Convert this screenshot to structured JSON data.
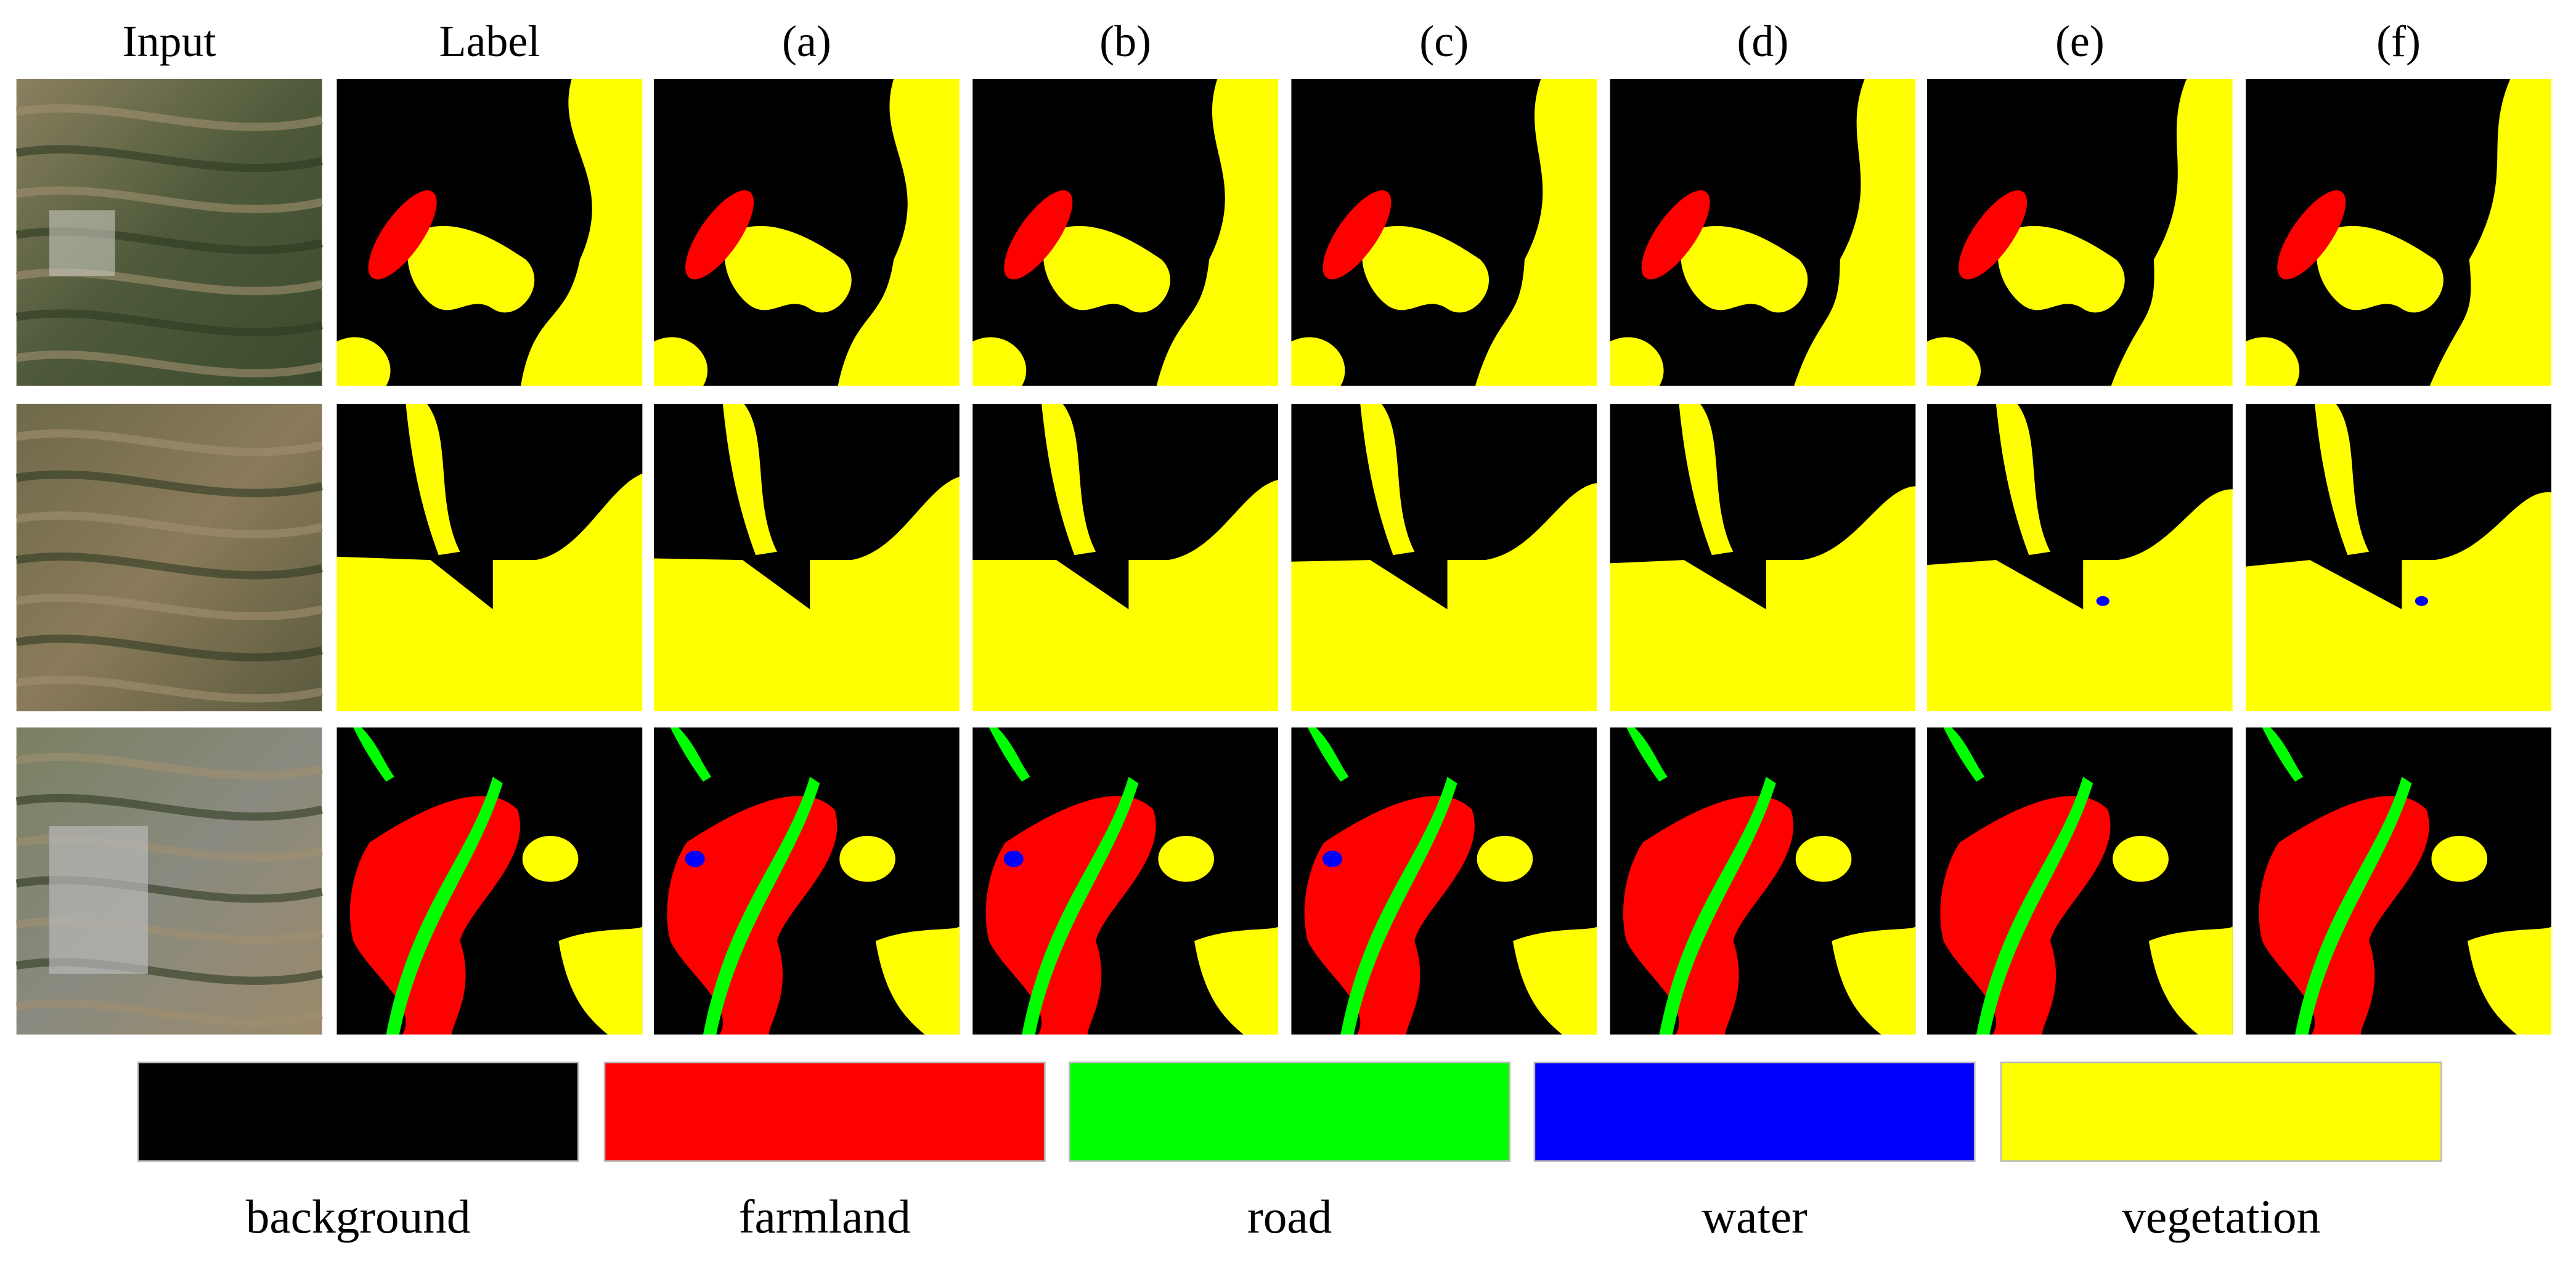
{
  "columns": [
    "Input",
    "Label",
    "(a)",
    "(b)",
    "(c)",
    "(d)",
    "(e)",
    "(f)"
  ],
  "legend": [
    {
      "name": "background",
      "color": "#000000"
    },
    {
      "name": "farmland",
      "color": "#ff0000"
    },
    {
      "name": "road",
      "color": "#00ff00"
    },
    {
      "name": "water",
      "color": "#0000ff"
    },
    {
      "name": "vegetation",
      "color": "#ffff00"
    }
  ]
}
